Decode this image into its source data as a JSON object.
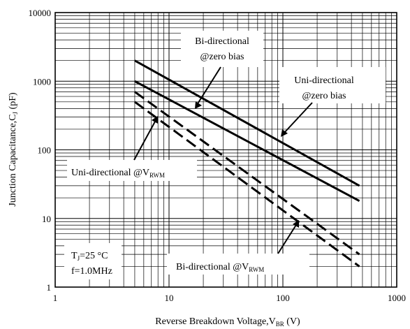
{
  "chart_data": {
    "type": "line",
    "title": "",
    "xlabel": "Reverse  Breakdown Voltage,V",
    "xlabel_sub": "BR",
    "xlabel_unit": "  (V)",
    "ylabel": "Junction Capacitance,C",
    "ylabel_sub": "J",
    "ylabel_unit": " (pF)",
    "xscale": "log",
    "yscale": "log",
    "xlim": [
      1,
      1000
    ],
    "ylim": [
      1,
      10000
    ],
    "xticks": [
      "1",
      "10",
      "100",
      "1000"
    ],
    "yticks": [
      "1",
      "10",
      "100",
      "1000",
      "10000"
    ],
    "grid": true,
    "series": [
      {
        "style": "solid",
        "x": [
          5,
          470
        ],
        "y": [
          2000,
          30
        ]
      },
      {
        "style": "solid",
        "x": [
          5,
          470
        ],
        "y": [
          1000,
          18
        ]
      },
      {
        "style": "dashed",
        "x": [
          5,
          470
        ],
        "y": [
          700,
          3
        ]
      },
      {
        "style": "dashed",
        "x": [
          5,
          470
        ],
        "y": [
          500,
          2
        ]
      }
    ],
    "annotations": [
      {
        "id": "bi_zero",
        "lines": [
          "Bi-directional",
          "@zero bias"
        ]
      },
      {
        "id": "uni_zero",
        "lines": [
          "Uni-directional",
          "@zero bias"
        ]
      },
      {
        "id": "uni_vrwm",
        "text": "Uni-directional @V",
        "sub": "RWM"
      },
      {
        "id": "bi_vrwm",
        "text": "Bi-directional @V",
        "sub": "RWM"
      },
      {
        "id": "conditions",
        "line1": "T",
        "line1_sub": "J",
        "line1_rest": "=25 °C",
        "line2": "f=1.0MHz"
      }
    ]
  }
}
